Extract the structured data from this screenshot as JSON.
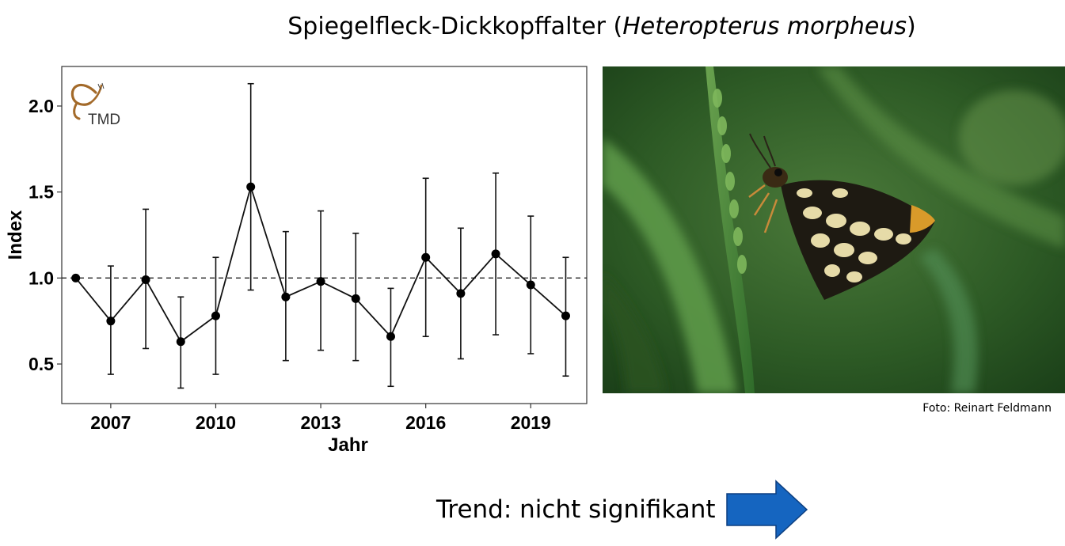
{
  "title": {
    "common_name": "Spiegelfleck-Dickkopffalter",
    "open_paren": "(",
    "latin_name": "Heteropterus morpheus",
    "close_paren": ")"
  },
  "logo": {
    "text": "TMD",
    "color": "#a36a2a"
  },
  "photo": {
    "credit": "Foto: Reinart Feldmann"
  },
  "trend": {
    "label": "Trend: nicht signifikant",
    "arrow_color": "#1565c0",
    "arrow_direction": "right"
  },
  "chart_data": {
    "type": "line",
    "xlabel": "Jahr",
    "ylabel": "Index",
    "xlim": [
      2005.6,
      2020.6
    ],
    "ylim": [
      0.27,
      2.23
    ],
    "x_ticks": [
      2007,
      2010,
      2013,
      2016,
      2019
    ],
    "y_ticks": [
      0.5,
      1.0,
      1.5,
      2.0
    ],
    "y_tick_labels": [
      "0.5",
      "1.0",
      "1.5",
      "2.0"
    ],
    "reference_line": 1.0,
    "reference_style": "dashed",
    "error_bars": true,
    "grid": false,
    "points": [
      {
        "year": 2006,
        "index": 1.0,
        "lower": null,
        "upper": null
      },
      {
        "year": 2007,
        "index": 0.75,
        "lower": 0.44,
        "upper": 1.07
      },
      {
        "year": 2008,
        "index": 0.99,
        "lower": 0.59,
        "upper": 1.4
      },
      {
        "year": 2009,
        "index": 0.63,
        "lower": 0.36,
        "upper": 0.89
      },
      {
        "year": 2010,
        "index": 0.78,
        "lower": 0.44,
        "upper": 1.12
      },
      {
        "year": 2011,
        "index": 1.53,
        "lower": 0.93,
        "upper": 2.13
      },
      {
        "year": 2012,
        "index": 0.89,
        "lower": 0.52,
        "upper": 1.27
      },
      {
        "year": 2013,
        "index": 0.98,
        "lower": 0.58,
        "upper": 1.39
      },
      {
        "year": 2014,
        "index": 0.88,
        "lower": 0.52,
        "upper": 1.26
      },
      {
        "year": 2015,
        "index": 0.66,
        "lower": 0.37,
        "upper": 0.94
      },
      {
        "year": 2016,
        "index": 1.12,
        "lower": 0.66,
        "upper": 1.58
      },
      {
        "year": 2017,
        "index": 0.91,
        "lower": 0.53,
        "upper": 1.29
      },
      {
        "year": 2018,
        "index": 1.14,
        "lower": 0.67,
        "upper": 1.61
      },
      {
        "year": 2019,
        "index": 0.96,
        "lower": 0.56,
        "upper": 1.36
      },
      {
        "year": 2020,
        "index": 0.78,
        "lower": 0.43,
        "upper": 1.12
      }
    ]
  }
}
